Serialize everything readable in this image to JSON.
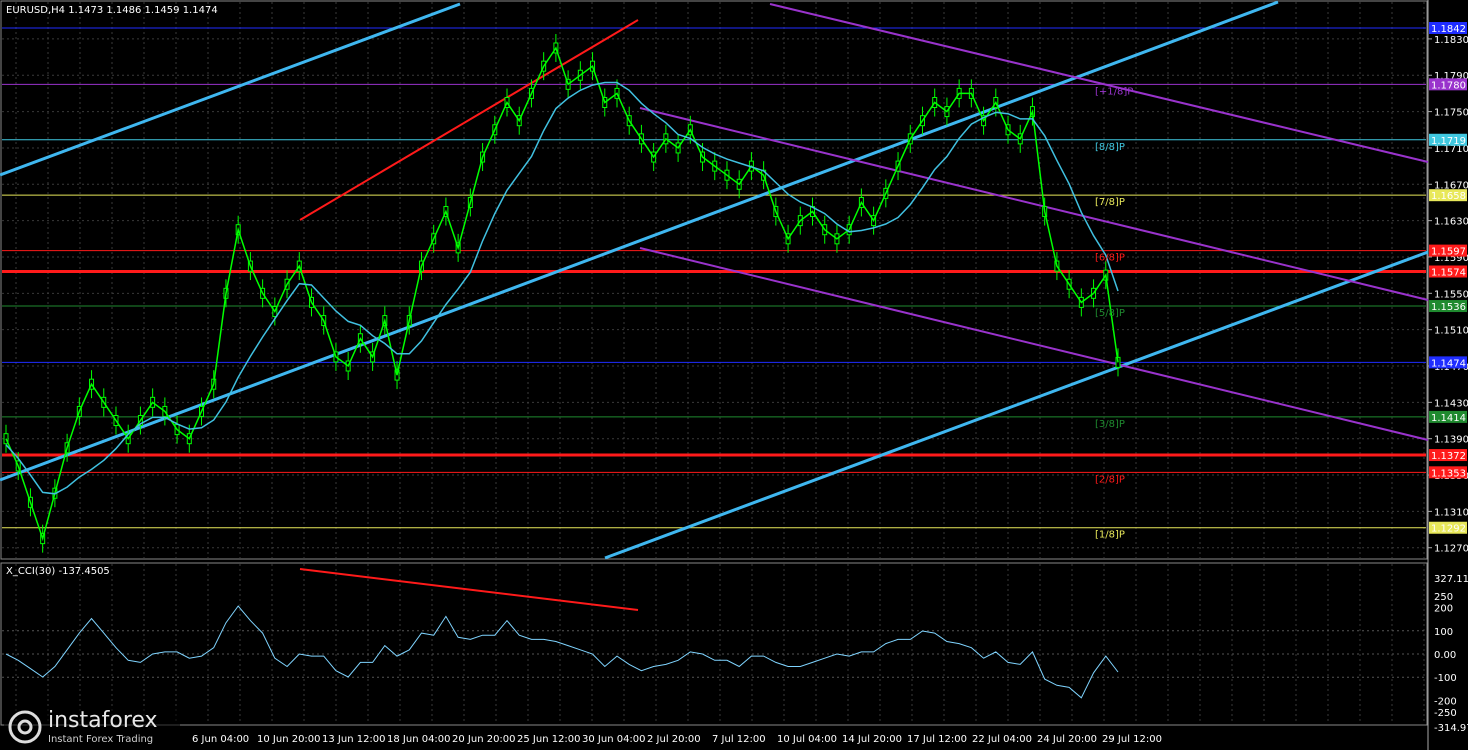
{
  "header": {
    "symbol_caption": "EURUSD,H4  1.1473  1.1486  1.1459  1.1474",
    "cci_caption": "X_CCI(30) -137.4505"
  },
  "brand": {
    "name": "instaforex",
    "tagline": "Instant Forex Trading"
  },
  "colors": {
    "background": "#000000",
    "grid": "#3a3a3a",
    "candle": "#00ff00",
    "ma": "#40c0e0",
    "channel": "#3fb7f0",
    "purple": "#9933cc",
    "red": "#ff1a1a",
    "cci": "#7fd4ff"
  },
  "chart_data": {
    "type": "line",
    "instrument": "EURUSD",
    "timeframe": "H4",
    "price_axis_ticks": [
      "1.1830",
      "1.1790",
      "1.1750",
      "1.1710",
      "1.1670",
      "1.1630",
      "1.1590",
      "1.1550",
      "1.1510",
      "1.1470",
      "1.1430",
      "1.1390",
      "1.1350",
      "1.1310",
      "1.1270"
    ],
    "time_axis_ticks": [
      "6 Jun 04:00",
      "10 Jun 20:00",
      "13 Jun 12:00",
      "18 Jun 04:00",
      "20 Jun 20:00",
      "25 Jun 12:00",
      "30 Jun 04:00",
      "2 Jul 20:00",
      "7 Jul 12:00",
      "10 Jul 04:00",
      "14 Jul 20:00",
      "17 Jul 12:00",
      "22 Jul 04:00",
      "24 Jul 20:00",
      "29 Jul 12:00"
    ],
    "price_labels": [
      {
        "text": "1.1842",
        "price": 1.1842,
        "color": "#1f2dff"
      },
      {
        "text": "1.1780",
        "price": 1.178,
        "color": "#9933cc"
      },
      {
        "text": "1.1719",
        "price": 1.1719,
        "color": "#40c8e0"
      },
      {
        "text": "1.1658",
        "price": 1.1658,
        "color": "#e8e85a"
      },
      {
        "text": "1.1597",
        "price": 1.1597,
        "color": "#ff1a1a"
      },
      {
        "text": "1.1574",
        "price": 1.1574,
        "color": "#ff1a1a"
      },
      {
        "text": "1.1536",
        "price": 1.1536,
        "color": "#1f8a2f"
      },
      {
        "text": "1.1474",
        "price": 1.1474,
        "color": "#1f2dff"
      },
      {
        "text": "1.1414",
        "price": 1.1414,
        "color": "#1f8a2f"
      },
      {
        "text": "1.1372",
        "price": 1.1372,
        "color": "#ff1a1a"
      },
      {
        "text": "1.1353",
        "price": 1.1353,
        "color": "#ff1a1a"
      },
      {
        "text": "1.1292",
        "price": 1.1292,
        "color": "#e8e85a"
      }
    ],
    "murrey_labels": [
      {
        "text": "[+1/8]P",
        "price": 1.178,
        "color": "#9933cc"
      },
      {
        "text": "[8/8]P",
        "price": 1.1719,
        "color": "#40c8e0"
      },
      {
        "text": "[7/8]P",
        "price": 1.1658,
        "color": "#e8e85a"
      },
      {
        "text": "[6/8]P",
        "price": 1.1597,
        "color": "#ff1a1a"
      },
      {
        "text": "[5/8]P",
        "price": 1.1536,
        "color": "#1f8a2f"
      },
      {
        "text": "[3/8]P",
        "price": 1.1414,
        "color": "#1f8a2f"
      },
      {
        "text": "[2/8]P",
        "price": 1.1353,
        "color": "#ff1a1a"
      },
      {
        "text": "[1/8]P",
        "price": 1.1292,
        "color": "#e8e85a"
      }
    ],
    "price_path": [
      1.139,
      1.136,
      1.132,
      1.128,
      1.133,
      1.138,
      1.142,
      1.145,
      1.143,
      1.141,
      1.139,
      1.141,
      1.143,
      1.142,
      1.14,
      1.139,
      1.142,
      1.145,
      1.155,
      1.162,
      1.158,
      1.155,
      1.153,
      1.156,
      1.158,
      1.154,
      1.152,
      1.148,
      1.147,
      1.15,
      1.148,
      1.152,
      1.146,
      1.152,
      1.158,
      1.161,
      1.164,
      1.16,
      1.165,
      1.17,
      1.173,
      1.176,
      1.174,
      1.177,
      1.18,
      1.182,
      1.178,
      1.179,
      1.18,
      1.176,
      1.177,
      1.174,
      1.172,
      1.17,
      1.172,
      1.171,
      1.173,
      1.17,
      1.169,
      1.168,
      1.167,
      1.169,
      1.168,
      1.164,
      1.161,
      1.163,
      1.164,
      1.162,
      1.161,
      1.162,
      1.165,
      1.163,
      1.166,
      1.169,
      1.172,
      1.174,
      1.176,
      1.175,
      1.177,
      1.177,
      1.174,
      1.176,
      1.173,
      1.172,
      1.175,
      1.164,
      1.158,
      1.156,
      1.154,
      1.155,
      1.157,
      1.1474
    ],
    "cci_axis_ticks": [
      "327.116",
      "250",
      "200",
      "100",
      "0.00",
      "-100",
      "-200",
      "-250",
      "-314.975"
    ],
    "cci_last": -137.4505
  }
}
